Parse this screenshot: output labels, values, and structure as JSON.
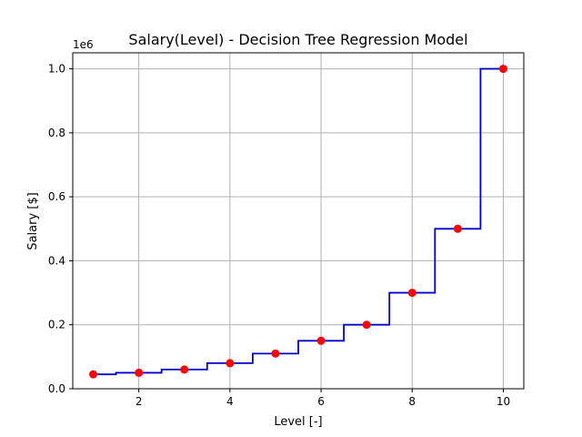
{
  "chart_data": {
    "type": "line",
    "title": "Salary(Level) - Decision Tree Regression Model",
    "xlabel": "Level [-]",
    "ylabel": "Salary [$]",
    "y_offset_label": "1e6",
    "xlim": [
      0.55,
      10.45
    ],
    "ylim": [
      0,
      1050000
    ],
    "x_ticks": [
      2,
      4,
      6,
      8,
      10
    ],
    "x_tick_labels": [
      "2",
      "4",
      "6",
      "8",
      "10"
    ],
    "y_ticks": [
      0,
      200000,
      400000,
      600000,
      800000,
      1000000
    ],
    "y_tick_labels": [
      "0.0",
      "0.2",
      "0.4",
      "0.6",
      "0.8",
      "1.0"
    ],
    "grid": true,
    "scatter_series": {
      "x": [
        1,
        2,
        3,
        4,
        5,
        6,
        7,
        8,
        9,
        10
      ],
      "y": [
        45000,
        50000,
        60000,
        80000,
        110000,
        150000,
        200000,
        300000,
        500000,
        1000000
      ],
      "color": "#ff0000"
    },
    "line_series": {
      "x": [
        1,
        1.5,
        1.5,
        2.5,
        2.5,
        3.5,
        3.5,
        4.5,
        4.5,
        5.5,
        5.5,
        6.5,
        6.5,
        7.5,
        7.5,
        8.5,
        8.5,
        9.5,
        9.5,
        10
      ],
      "y": [
        45000,
        45000,
        50000,
        50000,
        60000,
        60000,
        80000,
        80000,
        110000,
        110000,
        150000,
        150000,
        200000,
        200000,
        300000,
        300000,
        500000,
        500000,
        1000000,
        1000000
      ],
      "color": "#0000cc"
    },
    "grid_color": "#b0b0b0"
  }
}
